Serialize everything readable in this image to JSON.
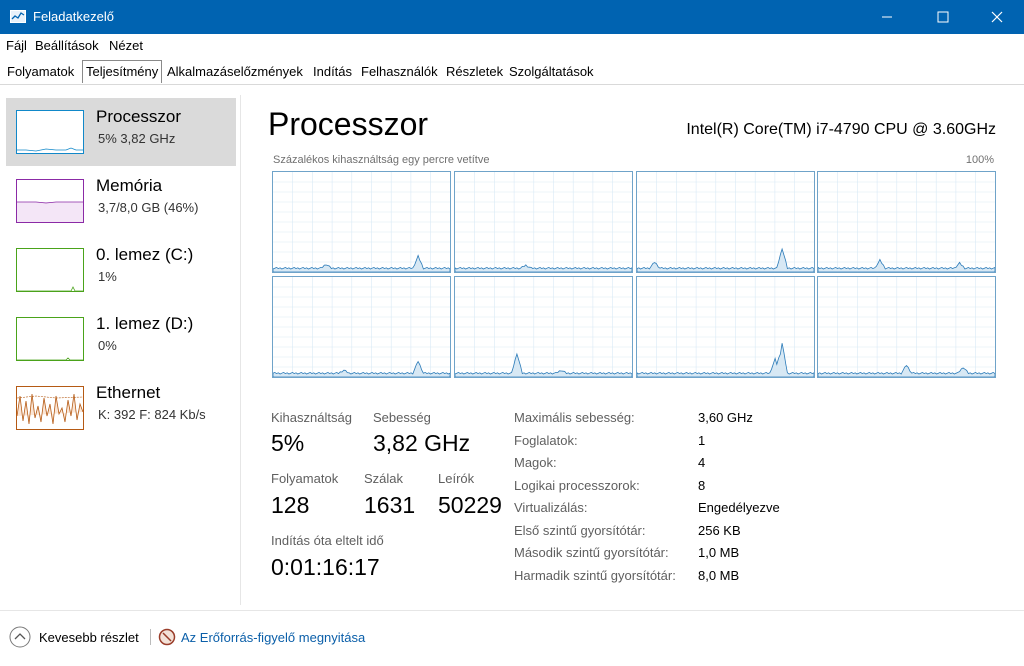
{
  "window": {
    "title": "Feladatkezelő",
    "icon": "task-manager-icon",
    "controls": [
      "minimize-icon",
      "maximize-icon",
      "close-icon"
    ]
  },
  "menu": [
    "Fájl",
    "Beállítások",
    "Nézet"
  ],
  "tabs": [
    "Folyamatok",
    "Teljesítmény",
    "Alkalmazáselőzmények",
    "Indítás",
    "Felhasználók",
    "Részletek",
    "Szolgáltatások"
  ],
  "active_tab": "Teljesítmény",
  "sidebar": {
    "items": [
      {
        "name": "Processzor",
        "sub": "5%  3,82 GHz",
        "color": "#1188c9",
        "selected": true
      },
      {
        "name": "Memória",
        "sub": "3,7/8,0 GB (46%)",
        "color": "#8b2aa6"
      },
      {
        "name": "0. lemez (C:)",
        "sub": "1%",
        "color": "#4aa31a"
      },
      {
        "name": "1. lemez (D:)",
        "sub": "0%",
        "color": "#4aa31a"
      },
      {
        "name": "Ethernet",
        "sub": "K: 392  F: 824 Kb/s",
        "color": "#b55a14"
      }
    ]
  },
  "main": {
    "title": "Processzor",
    "cpu_name": "Intel(R) Core(TM) i7-4790 CPU @ 3.60GHz",
    "graph_caption": "Százalékos kihasználtság egy percre vetítve",
    "graph_max": "100%",
    "core_count": 8,
    "stats": {
      "utilization_label": "Kihasználtság",
      "utilization_value": "5%",
      "speed_label": "Sebesség",
      "speed_value": "3,82 GHz",
      "processes_label": "Folyamatok",
      "processes_value": "128",
      "threads_label": "Szálak",
      "threads_value": "1631",
      "handles_label": "Leírók",
      "handles_value": "50229",
      "uptime_label": "Indítás óta eltelt idő",
      "uptime_value": "0:01:16:17"
    },
    "info": [
      {
        "label": "Maximális sebesség:",
        "value": "3,60 GHz"
      },
      {
        "label": "Foglalatok:",
        "value": "1"
      },
      {
        "label": "Magok:",
        "value": "4"
      },
      {
        "label": "Logikai processzorok:",
        "value": "8"
      },
      {
        "label": "Virtualizálás:",
        "value": "Engedélyezve"
      },
      {
        "label": "Első szintű gyorsítótár:",
        "value": "256 KB"
      },
      {
        "label": "Második szintű gyorsítótár:",
        "value": "1,0 MB"
      },
      {
        "label": "Harmadik szintű gyorsítótár:",
        "value": "8,0 MB"
      }
    ]
  },
  "footer": {
    "less_details": "Kevesebb részlet",
    "resource_monitor": "Az Erőforrás-figyelő megnyitása"
  }
}
